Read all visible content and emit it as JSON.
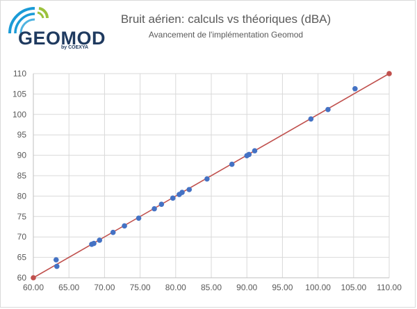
{
  "logo": {
    "brand": "GEOMOD",
    "byline": "by COEXYA"
  },
  "chart_data": {
    "type": "scatter",
    "title": "Bruit aérien: calculs vs théoriques (dBA)",
    "subtitle": "Avancement de l'implémentation Geomod",
    "xlim": [
      60,
      110
    ],
    "ylim": [
      60,
      110
    ],
    "x_ticks": [
      "60.00",
      "65.00",
      "70.00",
      "75.00",
      "80.00",
      "85.00",
      "90.00",
      "95.00",
      "100.00",
      "105.00",
      "110.00"
    ],
    "y_ticks": [
      "60",
      "65",
      "70",
      "75",
      "80",
      "85",
      "90",
      "95",
      "100",
      "105",
      "110"
    ],
    "grid": true,
    "series": [
      {
        "type": "scatter",
        "color": "#4472c4",
        "points": [
          [
            63.2,
            64.4
          ],
          [
            63.3,
            62.8
          ],
          [
            68.2,
            68.2
          ],
          [
            68.5,
            68.4
          ],
          [
            69.3,
            69.2
          ],
          [
            71.2,
            71.1
          ],
          [
            72.8,
            72.7
          ],
          [
            74.8,
            74.6
          ],
          [
            77.0,
            76.9
          ],
          [
            78.0,
            78.0
          ],
          [
            79.6,
            79.5
          ],
          [
            80.5,
            80.4
          ],
          [
            80.9,
            80.9
          ],
          [
            81.9,
            81.6
          ],
          [
            84.4,
            84.2
          ],
          [
            87.9,
            87.8
          ],
          [
            90.0,
            89.9
          ],
          [
            90.3,
            90.2
          ],
          [
            91.1,
            91.1
          ],
          [
            99.0,
            98.9
          ],
          [
            101.4,
            101.2
          ],
          [
            105.2,
            106.3
          ]
        ]
      },
      {
        "type": "line",
        "color": "#c0504d",
        "points": [
          [
            60,
            60
          ],
          [
            110,
            110
          ]
        ]
      }
    ]
  }
}
